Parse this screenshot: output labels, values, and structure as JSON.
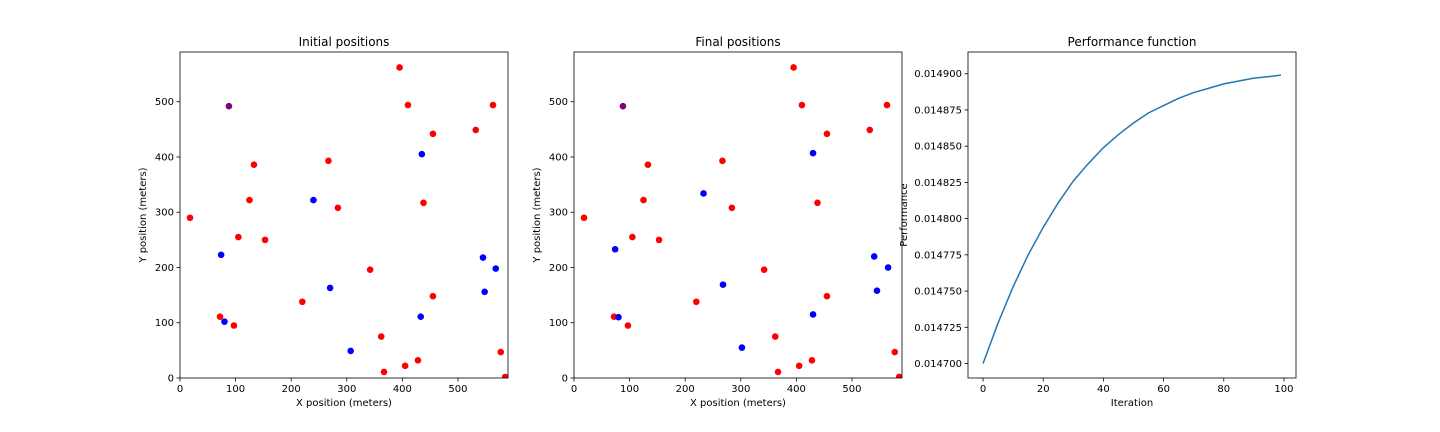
{
  "colors": {
    "red": "#ff0000",
    "blue": "#0000ff",
    "purple": "#800080",
    "line": "#1f77b4"
  },
  "chart_data": [
    {
      "type": "scatter",
      "title": "Initial positions",
      "xlabel": "X position (meters)",
      "ylabel": "Y position (meters)",
      "xlim": [
        0,
        590
      ],
      "ylim": [
        0,
        590
      ],
      "xticks": [
        0,
        100,
        200,
        300,
        400,
        500
      ],
      "yticks": [
        0,
        100,
        200,
        300,
        400,
        500
      ],
      "grid": false,
      "series": [
        {
          "color": "red",
          "points": [
            [
              395,
              562
            ],
            [
              410,
              494
            ],
            [
              563,
              494
            ],
            [
              532,
              449
            ],
            [
              455,
              442
            ],
            [
              133,
              386
            ],
            [
              267,
              393
            ],
            [
              438,
              317
            ],
            [
              125,
              322
            ],
            [
              284,
              308
            ],
            [
              18,
              290
            ],
            [
              105,
              255
            ],
            [
              153,
              250
            ],
            [
              342,
              196
            ],
            [
              455,
              148
            ],
            [
              220,
              138
            ],
            [
              72,
              111
            ],
            [
              97,
              95
            ],
            [
              362,
              75
            ],
            [
              577,
              47
            ],
            [
              405,
              22
            ],
            [
              428,
              32
            ],
            [
              367,
              11
            ],
            [
              585,
              2
            ]
          ]
        },
        {
          "color": "blue",
          "points": [
            [
              435,
              405
            ],
            [
              240,
              322
            ],
            [
              74,
              223
            ],
            [
              545,
              218
            ],
            [
              568,
              198
            ],
            [
              270,
              163
            ],
            [
              548,
              156
            ],
            [
              433,
              111
            ],
            [
              80,
              102
            ],
            [
              307,
              49
            ]
          ]
        },
        {
          "color": "purple",
          "points": [
            [
              88,
              492
            ]
          ]
        }
      ]
    },
    {
      "type": "scatter",
      "title": "Final positions",
      "xlabel": "X position (meters)",
      "ylabel": "Y position (meters)",
      "xlim": [
        0,
        590
      ],
      "ylim": [
        0,
        590
      ],
      "xticks": [
        0,
        100,
        200,
        300,
        400,
        500
      ],
      "yticks": [
        0,
        100,
        200,
        300,
        400,
        500
      ],
      "grid": false,
      "series": [
        {
          "color": "red",
          "points": [
            [
              395,
              562
            ],
            [
              410,
              494
            ],
            [
              563,
              494
            ],
            [
              532,
              449
            ],
            [
              455,
              442
            ],
            [
              133,
              386
            ],
            [
              267,
              393
            ],
            [
              438,
              317
            ],
            [
              125,
              322
            ],
            [
              284,
              308
            ],
            [
              18,
              290
            ],
            [
              105,
              255
            ],
            [
              153,
              250
            ],
            [
              342,
              196
            ],
            [
              455,
              148
            ],
            [
              220,
              138
            ],
            [
              72,
              111
            ],
            [
              97,
              95
            ],
            [
              362,
              75
            ],
            [
              577,
              47
            ],
            [
              405,
              22
            ],
            [
              428,
              32
            ],
            [
              367,
              11
            ],
            [
              585,
              2
            ]
          ]
        },
        {
          "color": "blue",
          "points": [
            [
              430,
              407
            ],
            [
              233,
              334
            ],
            [
              74,
              233
            ],
            [
              540,
              220
            ],
            [
              565,
              200
            ],
            [
              268,
              169
            ],
            [
              545,
              158
            ],
            [
              430,
              115
            ],
            [
              80,
              110
            ],
            [
              302,
              55
            ]
          ]
        },
        {
          "color": "purple",
          "points": [
            [
              88,
              492
            ]
          ]
        }
      ]
    },
    {
      "type": "line",
      "title": "Performance function",
      "xlabel": "Iteration",
      "ylabel": "Performance",
      "xlim": [
        -5,
        104
      ],
      "ylim": [
        0.01469,
        0.014915
      ],
      "xticks": [
        0,
        20,
        40,
        60,
        80,
        100
      ],
      "yticks": [
        "0.014700",
        "0.014725",
        "0.014750",
        "0.014775",
        "0.014800",
        "0.014825",
        "0.014850",
        "0.014875",
        "0.014900"
      ],
      "grid": false,
      "series": [
        {
          "color": "line",
          "x": [
            0,
            5,
            10,
            15,
            20,
            25,
            30,
            35,
            40,
            45,
            50,
            55,
            60,
            65,
            70,
            75,
            80,
            85,
            90,
            95,
            99
          ],
          "values": [
            0.0147,
            0.014728,
            0.014753,
            0.014775,
            0.014794,
            0.014811,
            0.014826,
            0.014838,
            0.014849,
            0.014858,
            0.014866,
            0.014873,
            0.014878,
            0.014883,
            0.014887,
            0.01489,
            0.014893,
            0.014895,
            0.014897,
            0.014898,
            0.014899
          ]
        }
      ]
    }
  ]
}
